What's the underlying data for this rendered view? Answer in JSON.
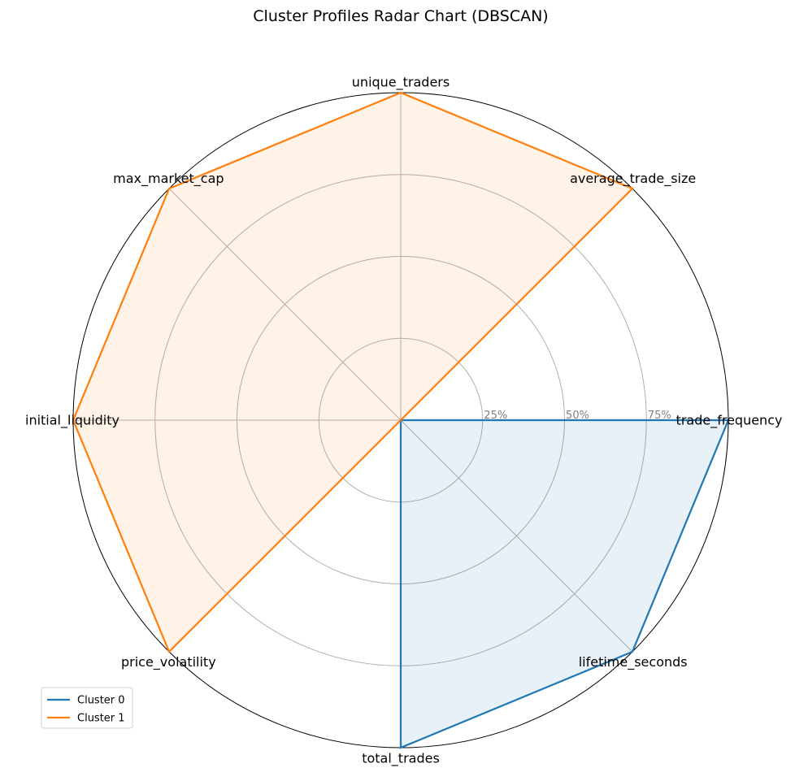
{
  "chart_data": {
    "type": "radar",
    "title": "Cluster Profiles Radar Chart (DBSCAN)",
    "axes": [
      "trade_frequency",
      "average_trade_size",
      "unique_traders",
      "max_market_cap",
      "initial_liquidity",
      "price_volatility",
      "total_trades",
      "lifetime_seconds"
    ],
    "rlim": [
      0,
      100
    ],
    "r_ticks": [
      25,
      50,
      75
    ],
    "r_tick_labels": [
      "25%",
      "50%",
      "75%"
    ],
    "grid": true,
    "legend": "bottom-left",
    "series": [
      {
        "name": "Cluster 0",
        "color": "#1f77b4",
        "values": [
          100,
          0,
          0,
          0,
          0,
          0,
          100,
          100
        ]
      },
      {
        "name": "Cluster 1",
        "color": "#ff7f0e",
        "values": [
          0,
          100,
          100,
          100,
          100,
          100,
          0,
          0
        ]
      }
    ]
  }
}
